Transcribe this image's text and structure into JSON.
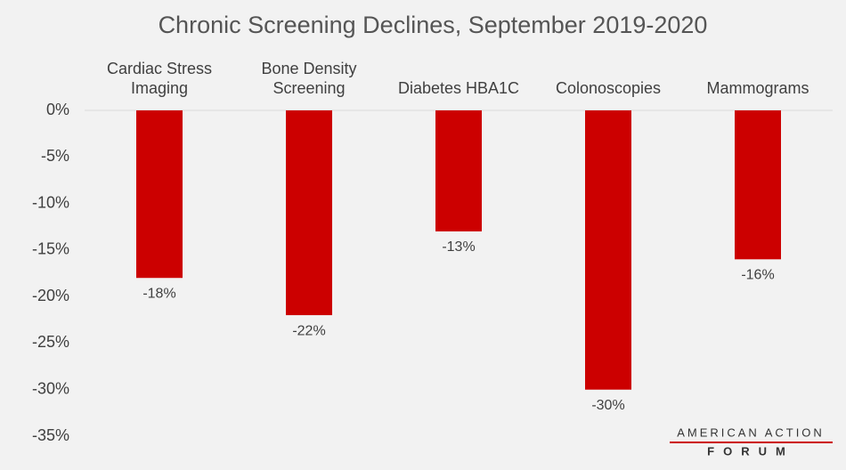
{
  "chart_data": {
    "type": "bar",
    "title": "Chronic Screening Declines, September 2019-2020",
    "categories": [
      "Cardiac Stress Imaging",
      "Bone Density Screening",
      "Diabetes HBA1C",
      "Colonoscopies",
      "Mammograms"
    ],
    "values": [
      -18,
      -22,
      -13,
      -30,
      -16
    ],
    "value_labels": [
      "-18%",
      "-22%",
      "-13%",
      "-30%",
      "-16%"
    ],
    "color": "#cc0000",
    "ylim": [
      -35,
      0
    ],
    "yticks": [
      {
        "value": 0,
        "label": "0%"
      },
      {
        "value": -5,
        "label": "-5%"
      },
      {
        "value": -10,
        "label": "-10%"
      },
      {
        "value": -15,
        "label": "-15%"
      },
      {
        "value": -20,
        "label": "-20%"
      },
      {
        "value": -25,
        "label": "-25%"
      },
      {
        "value": -30,
        "label": "-30%"
      },
      {
        "value": -35,
        "label": "-35%"
      }
    ],
    "grid": false
  },
  "logo": {
    "line1": "AMERICAN ACTION",
    "line2": "FORUM"
  }
}
